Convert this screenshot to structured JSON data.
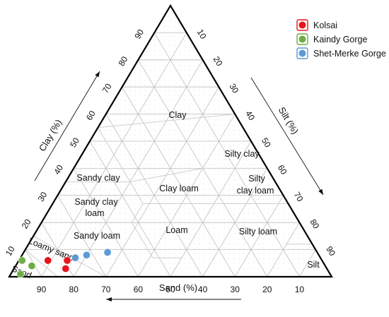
{
  "chart_data": {
    "type": "scatter",
    "ternary": true,
    "axes": {
      "sand": {
        "label": "Sand (%)",
        "ticks": [
          "90",
          "80",
          "70",
          "60",
          "50",
          "40",
          "30",
          "20",
          "10"
        ]
      },
      "clay": {
        "label": "Clay (%)",
        "ticks": [
          "10",
          "20",
          "30",
          "40",
          "50",
          "60",
          "70",
          "80",
          "90"
        ]
      },
      "silt": {
        "label": "Silt (%)",
        "ticks": [
          "10",
          "20",
          "30",
          "40",
          "50",
          "60",
          "70",
          "80",
          "90"
        ]
      }
    },
    "regions": [
      {
        "name": "Clay",
        "lines": [
          "Clay"
        ]
      },
      {
        "name": "Silty clay",
        "lines": [
          "Silty clay"
        ]
      },
      {
        "name": "Sandy clay",
        "lines": [
          "Sandy clay"
        ]
      },
      {
        "name": "Clay loam",
        "lines": [
          "Clay loam"
        ]
      },
      {
        "name": "Silty clay loam",
        "lines": [
          "Silty",
          "clay loam"
        ]
      },
      {
        "name": "Sandy clay loam",
        "lines": [
          "Sandy clay",
          "loam"
        ]
      },
      {
        "name": "Sandy loam",
        "lines": [
          "Sandy loam"
        ]
      },
      {
        "name": "Loam",
        "lines": [
          "Loam"
        ]
      },
      {
        "name": "Silty loam",
        "lines": [
          "Silty loam"
        ]
      },
      {
        "name": "Loamy sand",
        "lines": [
          "Loamy sand"
        ]
      },
      {
        "name": "Sand",
        "lines": [
          "Sand"
        ]
      },
      {
        "name": "Silt",
        "lines": [
          "Silt"
        ]
      }
    ],
    "legend": {
      "position": "top-right",
      "items": [
        {
          "name": "Kolsai",
          "color": "#e8141c"
        },
        {
          "name": "Kaindy Gorge",
          "color": "#6fae45"
        },
        {
          "name": "Shet-Merke Gorge",
          "color": "#5b9bd5"
        }
      ]
    },
    "series": [
      {
        "name": "Kolsai",
        "color": "#e8141c",
        "points": [
          {
            "sand": 85,
            "clay": 6,
            "silt": 9
          },
          {
            "sand": 79,
            "clay": 6,
            "silt": 15
          },
          {
            "sand": 81,
            "clay": 3,
            "silt": 16
          }
        ]
      },
      {
        "name": "Kaindy Gorge",
        "color": "#6fae45",
        "points": [
          {
            "sand": 93,
            "clay": 6,
            "silt": 1
          },
          {
            "sand": 91,
            "clay": 4,
            "silt": 5
          },
          {
            "sand": 96,
            "clay": 1,
            "silt": 3
          }
        ]
      },
      {
        "name": "Shet-Merke Gorge",
        "color": "#5b9bd5",
        "points": [
          {
            "sand": 76,
            "clay": 7,
            "silt": 17
          },
          {
            "sand": 72,
            "clay": 8,
            "silt": 20
          },
          {
            "sand": 65,
            "clay": 9,
            "silt": 26
          }
        ]
      }
    ]
  }
}
